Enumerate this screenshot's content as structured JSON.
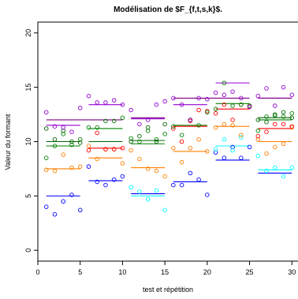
{
  "chart_data": {
    "type": "scatter",
    "title": "Modélisation de $F_{f,t,s,k}$.",
    "xlabel": "test et répétition",
    "ylabel": "Valeur du formant",
    "xlim": [
      0,
      31
    ],
    "ylim": [
      -1,
      21
    ],
    "x_ticks": [
      0,
      5,
      10,
      15,
      20,
      25,
      30
    ],
    "y_ticks": [
      0,
      5,
      10,
      15,
      20
    ],
    "grid": false,
    "legend": "none",
    "series": [
      {
        "color": "#0000ff",
        "points": [
          [
            1,
            4.0
          ],
          [
            2,
            3.3
          ],
          [
            3,
            4.5
          ],
          [
            4,
            5.1
          ],
          [
            5,
            3.7
          ],
          [
            6,
            7.7
          ],
          [
            7,
            6.3
          ],
          [
            8,
            6.0
          ],
          [
            9,
            6.5
          ],
          [
            10,
            6.8
          ],
          [
            16,
            6.0
          ],
          [
            17,
            6.0
          ],
          [
            18,
            7.1
          ],
          [
            19,
            6.5
          ],
          [
            20,
            5.1
          ],
          [
            21,
            9.0
          ],
          [
            22,
            8.5
          ],
          [
            23,
            9.5
          ],
          [
            24,
            8.5
          ],
          [
            25,
            9.5
          ]
        ],
        "levels": [
          {
            "x": [
              1,
              5
            ],
            "y": 5.0
          },
          {
            "x": [
              6,
              10
            ],
            "y": 6.4
          },
          {
            "x": [
              11,
              15
            ],
            "y": 5.2
          },
          {
            "x": [
              16,
              20
            ],
            "y": 6.3
          },
          {
            "x": [
              21,
              25
            ],
            "y": 8.3
          },
          {
            "x": [
              26,
              30
            ],
            "y": 7.1
          }
        ]
      },
      {
        "color": "#00ffff",
        "points": [
          [
            11,
            5.8
          ],
          [
            12,
            5.4
          ],
          [
            13,
            4.7
          ],
          [
            14,
            5.5
          ],
          [
            15,
            3.7
          ],
          [
            21,
            9.3
          ],
          [
            22,
            10.2
          ],
          [
            23,
            9.2
          ],
          [
            24,
            10.4
          ],
          [
            26,
            8.7
          ],
          [
            27,
            7.3
          ],
          [
            28,
            7.6
          ],
          [
            29,
            6.8
          ],
          [
            30,
            7.6
          ]
        ],
        "levels": [
          {
            "x": [
              11,
              15
            ],
            "y": 5.0
          },
          {
            "x": [
              21,
              25
            ],
            "y": 9.6
          },
          {
            "x": [
              26,
              30
            ],
            "y": 7.4
          }
        ]
      },
      {
        "color": "#ff7f00",
        "points": [
          [
            1,
            7.4
          ],
          [
            2,
            7.3
          ],
          [
            3,
            8.8
          ],
          [
            4,
            7.6
          ],
          [
            5,
            7.7
          ],
          [
            6,
            9.6
          ],
          [
            7,
            8.4
          ],
          [
            8,
            9.3
          ],
          [
            9,
            9.3
          ],
          [
            10,
            8.0
          ],
          [
            11,
            9.2
          ],
          [
            12,
            8.4
          ],
          [
            13,
            7.5
          ],
          [
            14,
            7.3
          ],
          [
            15,
            6.8
          ],
          [
            16,
            9.4
          ],
          [
            17,
            8.1
          ],
          [
            18,
            9.4
          ],
          [
            19,
            10.2
          ],
          [
            20,
            9.1
          ],
          [
            21,
            11.3
          ],
          [
            22,
            11.6
          ],
          [
            23,
            11.5
          ],
          [
            24,
            10.6
          ],
          [
            25,
            13.3
          ],
          [
            26,
            10.2
          ],
          [
            27,
            8.9
          ],
          [
            28,
            9.5
          ],
          [
            29,
            9.8
          ],
          [
            30,
            11.3
          ]
        ],
        "levels": [
          {
            "x": [
              1,
              5
            ],
            "y": 7.5
          },
          {
            "x": [
              6,
              10
            ],
            "y": 8.5
          },
          {
            "x": [
              11,
              15
            ],
            "y": 7.6
          },
          {
            "x": [
              16,
              20
            ],
            "y": 9.1
          },
          {
            "x": [
              21,
              25
            ],
            "y": 11.4
          },
          {
            "x": [
              26,
              30
            ],
            "y": 10.0
          }
        ]
      },
      {
        "color": "#ff0000",
        "points": [
          [
            6,
            9.2
          ],
          [
            7,
            10.8
          ],
          [
            8,
            9.3
          ],
          [
            9,
            9.3
          ],
          [
            10,
            9.4
          ],
          [
            16,
            11.2
          ],
          [
            17,
            10.0
          ],
          [
            18,
            11.9
          ],
          [
            19,
            12.9
          ],
          [
            20,
            12.8
          ],
          [
            21,
            12.6
          ],
          [
            22,
            13.4
          ],
          [
            23,
            12.0
          ],
          [
            24,
            13.4
          ],
          [
            25,
            13.2
          ],
          [
            26,
            10.5
          ],
          [
            27,
            10.9
          ],
          [
            28,
            11.6
          ],
          [
            29,
            11.6
          ],
          [
            30,
            11.4
          ]
        ],
        "levels": [
          {
            "x": [
              6,
              10
            ],
            "y": 9.4
          },
          {
            "x": [
              16,
              20
            ],
            "y": 11.4
          },
          {
            "x": [
              21,
              25
            ],
            "y": 13.0
          },
          {
            "x": [
              26,
              30
            ],
            "y": 11.2
          }
        ]
      },
      {
        "color": "#008000",
        "points": [
          [
            1,
            8.5
          ],
          [
            2,
            9.6
          ],
          [
            3,
            10.7
          ],
          [
            4,
            9.7
          ],
          [
            5,
            10.2
          ],
          [
            6,
            11.3
          ],
          [
            7,
            11.3
          ],
          [
            8,
            11.9
          ],
          [
            9,
            11.9
          ],
          [
            10,
            12.2
          ],
          [
            11,
            10.3
          ],
          [
            12,
            10.0
          ],
          [
            13,
            11.0
          ],
          [
            14,
            10.2
          ],
          [
            15,
            10.7
          ],
          [
            16,
            11.4
          ],
          [
            17,
            10.6
          ],
          [
            18,
            12.0
          ],
          [
            19,
            11.5
          ],
          [
            20,
            12.7
          ],
          [
            21,
            13.0
          ],
          [
            22,
            15.4
          ],
          [
            23,
            13.3
          ],
          [
            24,
            13.4
          ],
          [
            25,
            13.3
          ],
          [
            26,
            11.0
          ],
          [
            27,
            12.3
          ],
          [
            28,
            12.4
          ],
          [
            29,
            12.3
          ],
          [
            30,
            12.6
          ]
        ],
        "levels": [
          {
            "x": [
              1,
              5
            ],
            "y": 9.6
          },
          {
            "x": [
              6,
              10
            ],
            "y": 11.2
          },
          {
            "x": [
              11,
              15
            ],
            "y": 9.8
          },
          {
            "x": [
              16,
              20
            ],
            "y": 11.5
          },
          {
            "x": [
              21,
              25
            ],
            "y": 13.5
          },
          {
            "x": [
              26,
              30
            ],
            "y": 12.0
          }
        ]
      },
      {
        "color": "#006400",
        "points": [
          [
            1,
            11.2
          ],
          [
            2,
            10.2
          ],
          [
            3,
            11.0
          ],
          [
            4,
            10.0
          ],
          [
            5,
            9.9
          ],
          [
            11,
            10.0
          ],
          [
            12,
            10.5
          ],
          [
            13,
            11.3
          ],
          [
            14,
            10.0
          ],
          [
            15,
            11.6
          ],
          [
            26,
            12.0
          ],
          [
            27,
            11.8
          ],
          [
            28,
            12.5
          ],
          [
            29,
            12.7
          ],
          [
            30,
            12.2
          ]
        ],
        "levels": [
          {
            "x": [
              1,
              5
            ],
            "y": 10.0
          },
          {
            "x": [
              6,
              10
            ],
            "y": 10.0
          },
          {
            "x": [
              11,
              15
            ],
            "y": 10.1
          },
          {
            "x": [
              26,
              30
            ],
            "y": 12.2
          }
        ]
      },
      {
        "color": "#9400d3",
        "points": [
          [
            1,
            12.7
          ],
          [
            2,
            11.4
          ],
          [
            3,
            11.3
          ],
          [
            4,
            10.9
          ],
          [
            5,
            13.1
          ],
          [
            6,
            14.2
          ],
          [
            7,
            13.6
          ],
          [
            8,
            13.6
          ],
          [
            9,
            13.8
          ],
          [
            10,
            13.4
          ],
          [
            11,
            12.9
          ],
          [
            12,
            11.6
          ],
          [
            13,
            12.0
          ],
          [
            14,
            13.4
          ],
          [
            15,
            13.7
          ],
          [
            16,
            14.0
          ],
          [
            17,
            13.4
          ],
          [
            18,
            12.0
          ],
          [
            19,
            14.0
          ],
          [
            20,
            13.9
          ],
          [
            21,
            14.5
          ],
          [
            22,
            14.3
          ],
          [
            23,
            14.6
          ],
          [
            24,
            14.0
          ],
          [
            25,
            13.2
          ],
          [
            26,
            14.2
          ],
          [
            27,
            14.9
          ],
          [
            28,
            13.3
          ],
          [
            29,
            15.0
          ],
          [
            30,
            14.3
          ]
        ],
        "levels": [
          {
            "x": [
              1,
              5
            ],
            "y": 11.5
          },
          {
            "x": [
              6,
              10
            ],
            "y": 13.4
          },
          {
            "x": [
              11,
              15
            ],
            "y": 12.1
          },
          {
            "x": [
              16,
              20
            ],
            "y": 13.4
          },
          {
            "x": [
              21,
              25
            ],
            "y": 15.4
          },
          {
            "x": [
              26,
              30
            ],
            "y": 14.0
          }
        ]
      },
      {
        "color": "#800080",
        "points": [],
        "levels": [
          {
            "x": [
              1,
              10
            ],
            "y": 12.0
          },
          {
            "x": [
              11,
              15
            ],
            "y": 12.2
          },
          {
            "x": [
              16,
              25
            ],
            "y": 14.0
          },
          {
            "x": [
              26,
              30
            ],
            "y": 14.0
          }
        ]
      }
    ]
  }
}
